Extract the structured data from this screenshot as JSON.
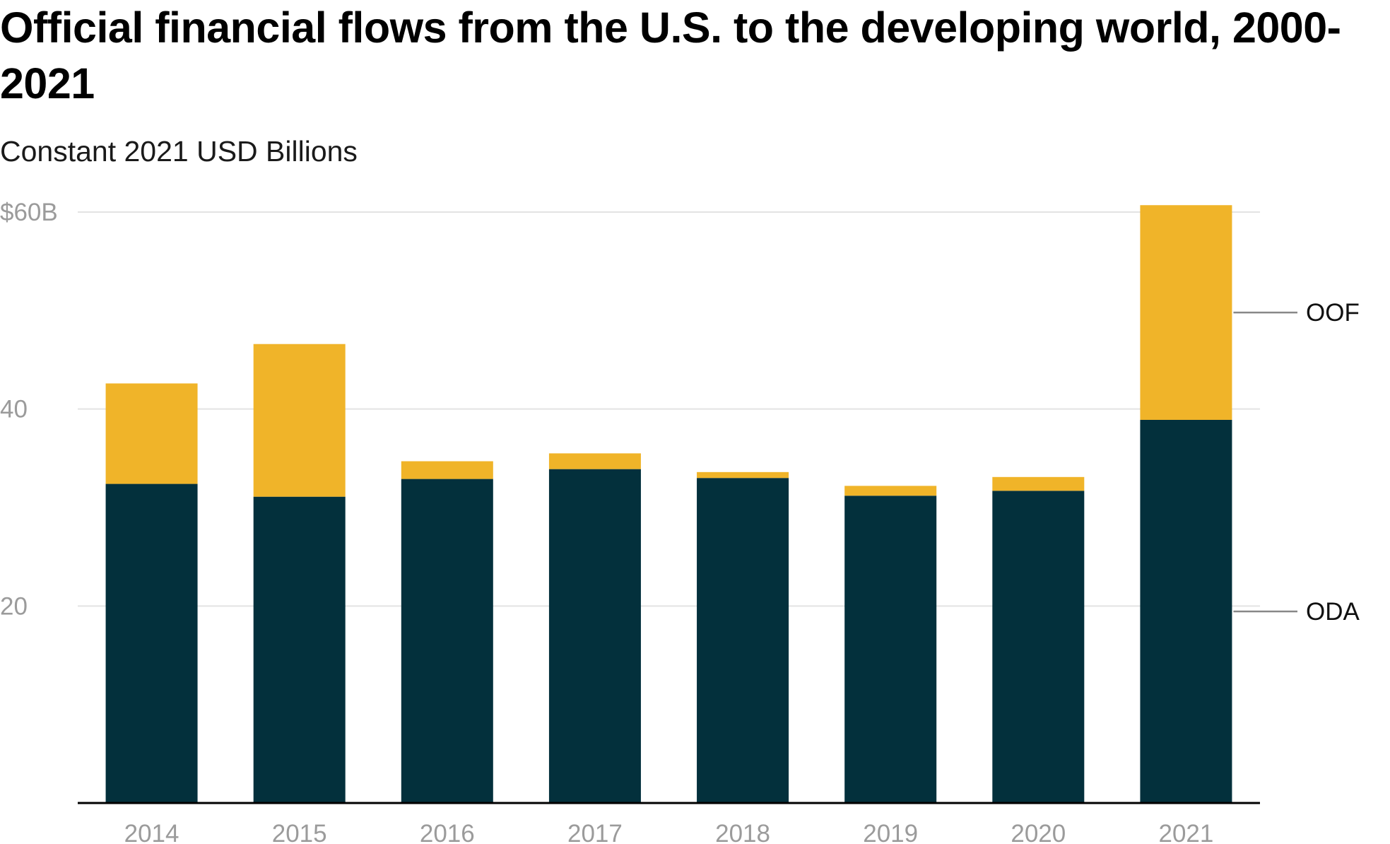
{
  "chart_data": {
    "type": "bar",
    "stacked": true,
    "title": "Official financial flows from the U.S. to the developing world, 2000-2021",
    "subtitle": "Constant 2021 USD Billions",
    "categories": [
      "2014",
      "2015",
      "2016",
      "2017",
      "2018",
      "2019",
      "2020",
      "2021"
    ],
    "series": [
      {
        "name": "ODA",
        "color": "#03303c",
        "values": [
          32.4,
          31.1,
          32.9,
          33.9,
          33.0,
          31.2,
          31.7,
          38.9
        ]
      },
      {
        "name": "OOF",
        "color": "#f0b429",
        "values": [
          10.2,
          15.5,
          1.8,
          1.6,
          0.6,
          1.0,
          1.4,
          21.8
        ]
      }
    ],
    "ylim": [
      0,
      60
    ],
    "yticks": [
      20,
      40,
      60
    ],
    "ytick_labels": [
      "20",
      "40",
      "$60B"
    ],
    "grid": true,
    "legend": "direct labels right of last bar",
    "gridline_color": "#e3e3e3",
    "axis_color": "#000000"
  }
}
